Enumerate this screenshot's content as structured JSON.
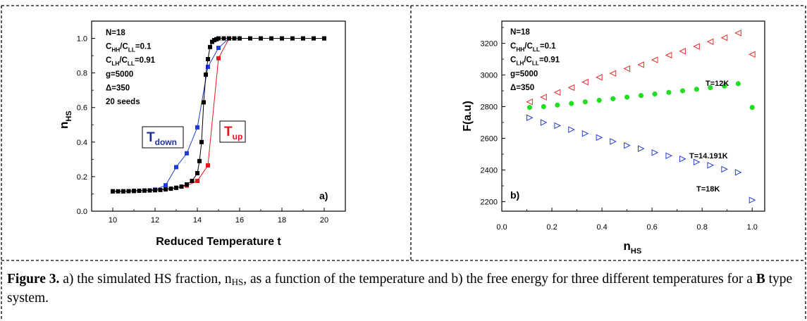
{
  "chart_data": [
    {
      "type": "scatter",
      "panel_label": "a)",
      "xlabel": "Reduced Temperature t",
      "ylabel_base": "n",
      "ylabel_sub": "HS",
      "xlim": [
        9,
        21
      ],
      "ylim": [
        0,
        1.1
      ],
      "xticks": [
        "10",
        "12",
        "14",
        "16",
        "18",
        "20"
      ],
      "yticks": [
        "0.0",
        "0.2",
        "0.4",
        "0.6",
        "0.8",
        "1.0"
      ],
      "params": [
        {
          "base": "N=18"
        },
        {
          "base": "C",
          "sub1": "HH",
          "mid": "/C",
          "sub2": "LL",
          "tail": "=0.1"
        },
        {
          "base": "C",
          "sub1": "LH",
          "mid": "/C",
          "sub2": "LL",
          "tail": "=0.91"
        },
        {
          "base": "g=5000"
        },
        {
          "base": "Δ=350"
        },
        {
          "base": "20 seeds"
        }
      ],
      "labels": {
        "down": {
          "base": "T",
          "sub": "down",
          "color": "#1f2f8f"
        },
        "up": {
          "base": "T",
          "sub": "up",
          "color": "#e8141c"
        }
      },
      "series": [
        {
          "key": "up",
          "color": "#e8141c",
          "x": [
            10.0,
            10.5,
            11.0,
            11.5,
            12.0,
            12.5,
            13.0,
            13.5,
            14.0,
            14.5,
            15.0,
            15.5,
            16.0,
            17.0,
            18.0,
            19.0,
            20.0
          ],
          "y": [
            0.115,
            0.115,
            0.117,
            0.12,
            0.123,
            0.128,
            0.136,
            0.148,
            0.175,
            0.265,
            0.885,
            1.0,
            1.0,
            1.0,
            1.0,
            1.0,
            1.0
          ]
        },
        {
          "key": "down",
          "color": "#1f3ad8",
          "x": [
            10.0,
            10.5,
            11.0,
            11.5,
            12.0,
            12.5,
            13.0,
            13.5,
            14.0,
            14.5,
            15.0,
            15.5,
            16.0,
            17.0,
            18.0,
            19.0,
            20.0
          ],
          "y": [
            0.115,
            0.115,
            0.118,
            0.12,
            0.125,
            0.15,
            0.255,
            0.335,
            0.485,
            0.835,
            0.945,
            1.0,
            1.0,
            1.0,
            1.0,
            1.0,
            1.0
          ]
        },
        {
          "key": "mean",
          "color": "#000000",
          "x": [
            10.0,
            10.25,
            10.5,
            10.75,
            11.0,
            11.25,
            11.5,
            11.75,
            12.0,
            12.25,
            12.5,
            12.75,
            13.0,
            13.25,
            13.5,
            13.75,
            14.0,
            14.1,
            14.2,
            14.3,
            14.4,
            14.5,
            14.6,
            14.7,
            14.8,
            14.9,
            15.0,
            15.25,
            15.5,
            15.75,
            16.0,
            16.5,
            17.0,
            17.5,
            18.0,
            18.5,
            19.0,
            19.5,
            20.0
          ],
          "y": [
            0.115,
            0.115,
            0.115,
            0.116,
            0.117,
            0.118,
            0.119,
            0.12,
            0.121,
            0.123,
            0.126,
            0.13,
            0.135,
            0.142,
            0.155,
            0.175,
            0.22,
            0.29,
            0.4,
            0.63,
            0.79,
            0.88,
            0.95,
            0.98,
            0.99,
            0.995,
            1.0,
            1.0,
            1.0,
            1.0,
            1.0,
            1.0,
            1.0,
            1.0,
            1.0,
            1.0,
            1.0,
            1.0,
            1.0
          ]
        }
      ]
    },
    {
      "type": "scatter",
      "panel_label": "b)",
      "xlabel_base": "n",
      "xlabel_sub": "HS",
      "ylabel": "F(a.u)",
      "xlim": [
        0.0,
        1.05
      ],
      "ylim": [
        2140,
        3340
      ],
      "xticks": [
        "0.0",
        "0.2",
        "0.4",
        "0.6",
        "0.8",
        "1.0"
      ],
      "yticks": [
        "2200",
        "2400",
        "2600",
        "2800",
        "3000",
        "3200"
      ],
      "params": [
        {
          "base": "N=18"
        },
        {
          "base": "C",
          "sub1": "HH",
          "mid": "/C",
          "sub2": "LL",
          "tail": "=0.1"
        },
        {
          "base": "C",
          "sub1": "LH",
          "mid": "/C",
          "sub2": "LL",
          "tail": "=0.91"
        },
        {
          "base": "g=5000"
        },
        {
          "base": "Δ=350"
        }
      ],
      "series": [
        {
          "name": "T=12K",
          "marker": "triangle-left",
          "color": "#e83030",
          "x": [
            0.111,
            0.167,
            0.222,
            0.278,
            0.333,
            0.389,
            0.444,
            0.5,
            0.556,
            0.611,
            0.667,
            0.722,
            0.778,
            0.833,
            0.889,
            0.944,
            1.0
          ],
          "y": [
            2830,
            2860,
            2890,
            2920,
            2955,
            2985,
            3010,
            3040,
            3065,
            3095,
            3125,
            3150,
            3180,
            3210,
            3235,
            3265,
            3130
          ]
        },
        {
          "name": "T=14.191K",
          "marker": "circle",
          "color": "#22dd22",
          "x": [
            0.111,
            0.167,
            0.222,
            0.278,
            0.333,
            0.389,
            0.444,
            0.5,
            0.556,
            0.611,
            0.667,
            0.722,
            0.778,
            0.833,
            0.889,
            0.944,
            1.0
          ],
          "y": [
            2795,
            2800,
            2810,
            2820,
            2830,
            2840,
            2850,
            2860,
            2870,
            2880,
            2890,
            2900,
            2910,
            2920,
            2930,
            2945,
            2795
          ]
        },
        {
          "name": "T=18K",
          "marker": "triangle-right",
          "color": "#2a3fd8",
          "x": [
            0.111,
            0.167,
            0.222,
            0.278,
            0.333,
            0.389,
            0.444,
            0.5,
            0.556,
            0.611,
            0.667,
            0.722,
            0.778,
            0.833,
            0.889,
            0.944,
            1.0
          ],
          "y": [
            2730,
            2700,
            2680,
            2655,
            2630,
            2605,
            2580,
            2555,
            2535,
            2510,
            2490,
            2470,
            2450,
            2430,
            2405,
            2385,
            2210
          ]
        }
      ]
    }
  ],
  "caption": {
    "label": "Figure 3.",
    "part1": " a) the simulated HS fraction, n",
    "part1_sub": "HS",
    "part2": ", as a function of the temperature and b) the free energy for three different temperatures for a ",
    "bold_letter": "B",
    "part3": " type system."
  }
}
